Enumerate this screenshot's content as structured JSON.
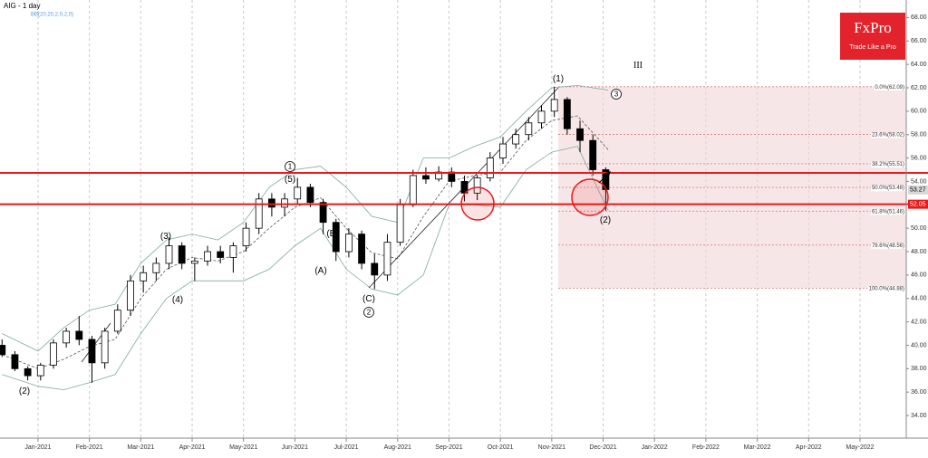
{
  "chart_data": {
    "type": "candlestick",
    "title": "AIG  - 1 day",
    "subtitle": "BB(20,20,2,0,2,0)",
    "x": [
      0.3,
      0.55,
      0.8,
      1.05,
      1.3,
      1.55,
      1.8,
      2.05,
      2.3,
      2.55,
      2.8,
      3.05,
      3.3,
      3.55,
      3.8,
      4.05,
      4.3,
      4.55,
      4.8,
      5.05,
      5.3,
      5.55,
      5.8,
      6.05,
      6.3,
      6.55,
      6.8,
      7.05,
      7.3,
      7.55,
      7.8,
      8.05,
      8.3,
      8.55,
      8.8,
      9.05,
      9.3,
      9.55,
      9.8,
      10.05,
      10.3,
      10.55,
      10.8,
      11.05,
      11.3,
      11.55,
      11.8,
      12.05
    ],
    "open": [
      40,
      39.2,
      38,
      37.4,
      38.3,
      40.2,
      41.2,
      40.5,
      38.5,
      41.2,
      43,
      45.5,
      46.2,
      47,
      48.5,
      47,
      47.2,
      48,
      47.5,
      48.5,
      50,
      52.5,
      51.8,
      52.5,
      53.5,
      52.2,
      50.5,
      48,
      49.5,
      47,
      46,
      48.8,
      52,
      54.5,
      54.2,
      54.8,
      54,
      53,
      54.3,
      56,
      57.2,
      58,
      59,
      60,
      61,
      58.5,
      57.5,
      55
    ],
    "high": [
      40.5,
      39.5,
      38.2,
      38.5,
      40.5,
      41.5,
      42.5,
      40.8,
      41.5,
      43.5,
      46,
      46.8,
      47.5,
      49.2,
      48.8,
      47.5,
      48.5,
      48.5,
      48.8,
      50.5,
      53,
      53,
      53,
      54.3,
      53.8,
      52.5,
      50.8,
      50,
      49.8,
      47.8,
      49.5,
      52.5,
      55,
      55.2,
      55.3,
      55.2,
      54.5,
      54.5,
      56.5,
      57.8,
      58.5,
      59.5,
      60.5,
      62.1,
      61.2,
      59.2,
      58,
      55.2
    ],
    "low": [
      39,
      37.8,
      37,
      37,
      38,
      39.8,
      40,
      36.8,
      38,
      41,
      42.5,
      44.5,
      45.5,
      46.5,
      46.5,
      45.5,
      46.8,
      47,
      46.2,
      48,
      49.5,
      51,
      51,
      52,
      51.8,
      49.5,
      47.2,
      47.5,
      46.5,
      44.8,
      45.5,
      48.5,
      51.8,
      53.8,
      54,
      53.5,
      52.3,
      52.4,
      54,
      55.5,
      56.8,
      57.5,
      58.5,
      59.5,
      58,
      56.5,
      54.5,
      51.5
    ],
    "close": [
      39.2,
      38,
      37.4,
      38.3,
      40.2,
      41.2,
      40.5,
      38.5,
      41.2,
      43,
      45.5,
      46.2,
      47,
      48.5,
      47,
      47.2,
      48,
      47.5,
      48.5,
      50,
      52.5,
      51.8,
      52.5,
      53.5,
      52.2,
      50.5,
      48,
      49.5,
      47,
      46,
      48.8,
      52,
      54.5,
      54.2,
      54.8,
      54,
      53,
      54.3,
      56,
      57.2,
      58,
      59,
      60,
      61,
      58.5,
      57.5,
      55,
      53.3
    ],
    "bands": {
      "x": [
        0.3,
        1,
        1.5,
        2,
        2.5,
        3,
        3.5,
        4,
        4.5,
        5,
        5.5,
        6,
        6.5,
        7,
        7.5,
        8,
        8.5,
        9,
        9.5,
        10,
        10.5,
        11,
        11.5,
        12.1
      ],
      "upper": [
        41,
        39.5,
        41.5,
        43,
        43.5,
        47,
        49,
        49.5,
        49,
        50.5,
        53.5,
        55,
        55.3,
        53.5,
        51,
        50.5,
        56,
        56,
        57,
        57.8,
        60,
        62,
        62.2,
        61.8
      ],
      "middle": [
        39.2,
        38,
        38.8,
        39.9,
        40.5,
        44,
        46.5,
        47.5,
        47.2,
        48,
        50,
        51.8,
        52.6,
        50,
        47.9,
        47.4,
        51,
        54,
        54.5,
        54.8,
        57.5,
        59.2,
        59.6,
        56.7
      ],
      "lower": [
        37.5,
        36.5,
        36.2,
        36.8,
        37.5,
        41,
        44,
        45.5,
        45.5,
        45.5,
        46.5,
        48.5,
        50,
        46.5,
        44.8,
        44.3,
        46,
        52,
        52,
        51.8,
        55,
        56.5,
        57,
        51.5
      ]
    },
    "up_color": "#ffffff",
    "down_color": "#000000",
    "band_color": "#7fa9a0",
    "level_color": "#e8191c",
    "fib_color": "#f2d5d7",
    "xlim": [
      0.26,
      17.9
    ],
    "xticks": [
      {
        "value": 1,
        "label": "Jan-2021"
      },
      {
        "value": 2,
        "label": "Feb-2021"
      },
      {
        "value": 3,
        "label": "Mar-2021"
      },
      {
        "value": 4,
        "label": "Apr-2021"
      },
      {
        "value": 5,
        "label": "May-2021"
      },
      {
        "value": 6,
        "label": "Jun-2021"
      },
      {
        "value": 7,
        "label": "Jul-2021"
      },
      {
        "value": 8,
        "label": "Aug-2021"
      },
      {
        "value": 9,
        "label": "Sep-2021"
      },
      {
        "value": 10,
        "label": "Oct-2021"
      },
      {
        "value": 11,
        "label": "Nov-2021"
      },
      {
        "value": 12,
        "label": "Dec-2021"
      },
      {
        "value": 13,
        "label": "Jan-2022"
      },
      {
        "value": 14,
        "label": "Feb-2022"
      },
      {
        "value": 15,
        "label": "Mar-2022"
      },
      {
        "value": 16,
        "label": "Apr-2022"
      },
      {
        "value": 17,
        "label": "May-2022"
      }
    ],
    "ylim": [
      32.07,
      69.5
    ],
    "yticks": [
      {
        "value": 34,
        "label": "34.00"
      },
      {
        "value": 36,
        "label": "36.00"
      },
      {
        "value": 38,
        "label": "38.00"
      },
      {
        "value": 40,
        "label": "40.00"
      },
      {
        "value": 42,
        "label": "42.00"
      },
      {
        "value": 44,
        "label": "44.00"
      },
      {
        "value": 46,
        "label": "46.00"
      },
      {
        "value": 48,
        "label": "48.00"
      },
      {
        "value": 50,
        "label": "50.00"
      },
      {
        "value": 54,
        "label": "54.00"
      },
      {
        "value": 56,
        "label": "56.00"
      },
      {
        "value": 58,
        "label": "58.00"
      },
      {
        "value": 60,
        "label": "60.00"
      },
      {
        "value": 62,
        "label": "62.00"
      },
      {
        "value": 64,
        "label": "64.00"
      },
      {
        "value": 66,
        "label": "66.00"
      },
      {
        "value": 68,
        "label": "68.00"
      }
    ],
    "grid": true,
    "fib_levels": [
      {
        "value": 62.09,
        "label": "0.0%(62.09)"
      },
      {
        "value": 58.02,
        "label": "23.6%(58.02)"
      },
      {
        "value": 55.51,
        "label": "38.2%(55.51)"
      },
      {
        "value": 53.48,
        "label": "50.0%(53.48)"
      },
      {
        "value": 51.46,
        "label": "61.8%(51.46)"
      },
      {
        "value": 48.56,
        "label": "78.6%(48.56)"
      },
      {
        "value": 44.88,
        "label": "100.0%(44.88)"
      }
    ],
    "levels": [
      54.73,
      52.05
    ],
    "last_price": 53.27,
    "annotations": [
      "(2)",
      "(3)",
      "(4)",
      "1",
      "(5)",
      "(B)",
      "(A)",
      "(C)",
      "2",
      "(1)",
      "3",
      "III",
      "(2)"
    ]
  },
  "brand": {
    "name": "FxPro",
    "tagline": "Trade Like a Pro"
  }
}
